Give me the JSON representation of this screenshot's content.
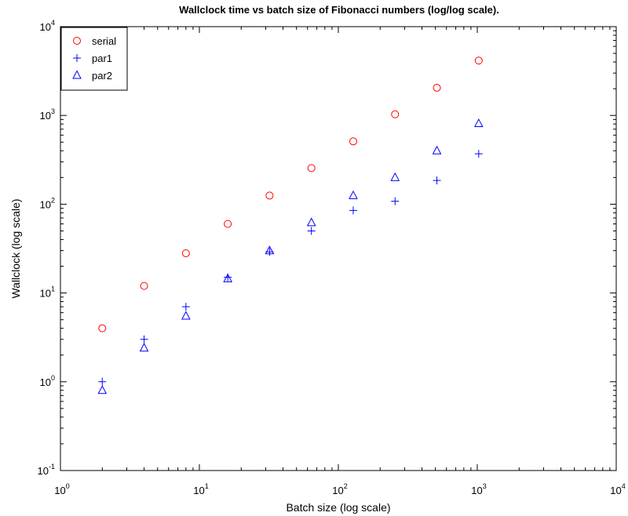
{
  "chart_data": {
    "type": "scatter",
    "title": "Wallclock time vs batch size of Fibonacci numbers (log/log scale).",
    "xlabel": "Batch size (log scale)",
    "ylabel": "Wallclock (log scale)",
    "xscale": "log",
    "yscale": "log",
    "xlim": [
      1,
      10000
    ],
    "ylim": [
      0.1,
      10000
    ],
    "grid": false,
    "legend": "top-left",
    "x_ticks": [
      {
        "base": "10",
        "exp": "0",
        "value": 1
      },
      {
        "base": "10",
        "exp": "1",
        "value": 10
      },
      {
        "base": "10",
        "exp": "2",
        "value": 100
      },
      {
        "base": "10",
        "exp": "3",
        "value": 1000
      },
      {
        "base": "10",
        "exp": "4",
        "value": 10000
      }
    ],
    "y_ticks": [
      {
        "base": "10",
        "exp": "-1",
        "value": 0.1
      },
      {
        "base": "10",
        "exp": "0",
        "value": 1
      },
      {
        "base": "10",
        "exp": "1",
        "value": 10
      },
      {
        "base": "10",
        "exp": "2",
        "value": 100
      },
      {
        "base": "10",
        "exp": "3",
        "value": 1000
      },
      {
        "base": "10",
        "exp": "4",
        "value": 10000
      }
    ],
    "x": [
      2,
      4,
      8,
      16,
      32,
      64,
      128,
      256,
      512,
      1024
    ],
    "series": [
      {
        "name": "serial",
        "marker": "circle",
        "color": "#ff0000",
        "values": [
          4,
          12,
          28,
          60,
          125,
          255,
          510,
          1030,
          2050,
          4150
        ]
      },
      {
        "name": "par1",
        "marker": "plus",
        "color": "#0000ff",
        "values": [
          1.0,
          3.0,
          7.0,
          15,
          29,
          50,
          85,
          108,
          185,
          370
        ]
      },
      {
        "name": "par2",
        "marker": "triangle",
        "color": "#0000ff",
        "values": [
          0.8,
          2.4,
          5.5,
          14.5,
          30,
          62,
          125,
          200,
          400,
          810
        ]
      }
    ]
  }
}
